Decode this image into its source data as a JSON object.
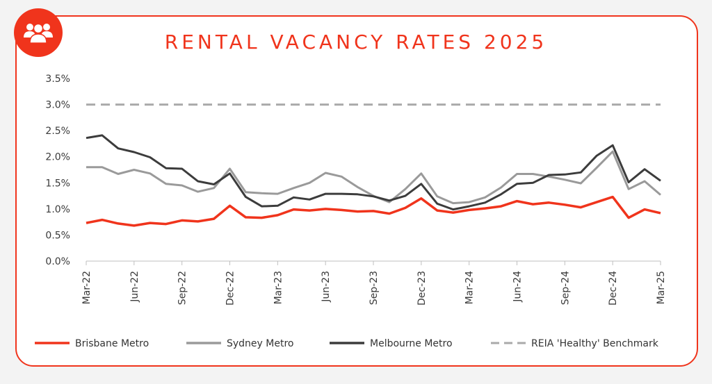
{
  "chart_data": {
    "type": "line",
    "title": "RENTAL VACANCY RATES 2025",
    "icon": "people-group-icon",
    "accent_color": "#f0341c",
    "ylim": [
      0,
      3.5
    ],
    "y_ticks": [
      "0.0%",
      "0.5%",
      "1.0%",
      "1.5%",
      "2.0%",
      "2.5%",
      "3.0%",
      "3.5%"
    ],
    "x_tick_labels": [
      "Mar-22",
      "Jun-22",
      "Sep-22",
      "Dec-22",
      "Mar-23",
      "Jun-23",
      "Sep-23",
      "Dec-23",
      "Mar-24",
      "Jun-24",
      "Sep-24",
      "Dec-24",
      "Mar-25"
    ],
    "months": [
      "Mar-22",
      "Apr-22",
      "May-22",
      "Jun-22",
      "Jul-22",
      "Aug-22",
      "Sep-22",
      "Oct-22",
      "Nov-22",
      "Dec-22",
      "Jan-23",
      "Feb-23",
      "Mar-23",
      "Apr-23",
      "May-23",
      "Jun-23",
      "Jul-23",
      "Aug-23",
      "Sep-23",
      "Oct-23",
      "Nov-23",
      "Dec-23",
      "Jan-24",
      "Feb-24",
      "Mar-24",
      "Apr-24",
      "May-24",
      "Jun-24",
      "Jul-24",
      "Aug-24",
      "Sep-24",
      "Oct-24",
      "Nov-24",
      "Dec-24",
      "Jan-25",
      "Feb-25",
      "Mar-25"
    ],
    "legend_position": "bottom",
    "grid": false,
    "series": [
      {
        "name": "Brisbane Metro",
        "color": "#f0341c",
        "style": "solid",
        "values": [
          0.73,
          0.79,
          0.72,
          0.68,
          0.73,
          0.71,
          0.78,
          0.76,
          0.81,
          1.06,
          0.84,
          0.83,
          0.88,
          0.99,
          0.97,
          1.0,
          0.98,
          0.95,
          0.96,
          0.91,
          1.02,
          1.2,
          0.97,
          0.93,
          0.98,
          1.01,
          1.05,
          1.15,
          1.09,
          1.12,
          1.08,
          1.03,
          1.13,
          1.23,
          0.83,
          0.99,
          0.92
        ]
      },
      {
        "name": "Sydney Metro",
        "color": "#9a9a9a",
        "style": "solid",
        "values": [
          1.8,
          1.8,
          1.67,
          1.75,
          1.68,
          1.48,
          1.45,
          1.33,
          1.4,
          1.77,
          1.32,
          1.3,
          1.29,
          1.4,
          1.5,
          1.69,
          1.62,
          1.42,
          1.25,
          1.13,
          1.38,
          1.68,
          1.24,
          1.11,
          1.13,
          1.22,
          1.41,
          1.67,
          1.67,
          1.62,
          1.56,
          1.49,
          1.79,
          2.1,
          1.38,
          1.53,
          1.27
        ]
      },
      {
        "name": "Melbourne Metro",
        "color": "#3c3c3c",
        "style": "solid",
        "values": [
          2.36,
          2.41,
          2.16,
          2.09,
          1.99,
          1.78,
          1.77,
          1.53,
          1.47,
          1.68,
          1.23,
          1.05,
          1.06,
          1.22,
          1.18,
          1.29,
          1.29,
          1.28,
          1.24,
          1.16,
          1.25,
          1.48,
          1.1,
          0.99,
          1.05,
          1.12,
          1.28,
          1.48,
          1.5,
          1.65,
          1.66,
          1.7,
          2.02,
          2.22,
          1.51,
          1.76,
          1.54
        ]
      },
      {
        "name": "REIA 'Healthy' Benchmark",
        "color": "#aaaaaa",
        "style": "dashed",
        "values": [
          3.0,
          3.0,
          3.0,
          3.0,
          3.0,
          3.0,
          3.0,
          3.0,
          3.0,
          3.0,
          3.0,
          3.0,
          3.0,
          3.0,
          3.0,
          3.0,
          3.0,
          3.0,
          3.0,
          3.0,
          3.0,
          3.0,
          3.0,
          3.0,
          3.0,
          3.0,
          3.0,
          3.0,
          3.0,
          3.0,
          3.0,
          3.0,
          3.0,
          3.0,
          3.0,
          3.0,
          3.0
        ]
      }
    ]
  }
}
